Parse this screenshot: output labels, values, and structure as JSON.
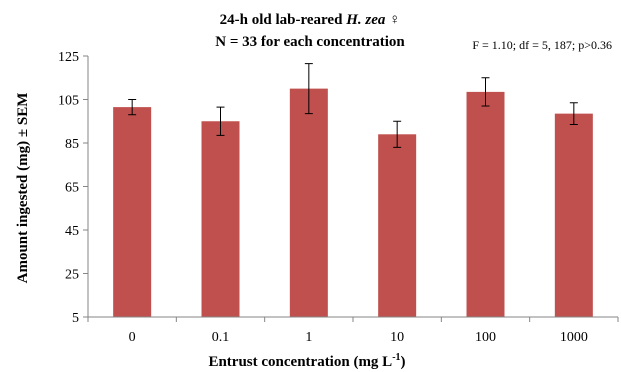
{
  "chart_data": {
    "type": "bar",
    "title_line1_prefix": "24-h old lab-reared ",
    "title_line1_italic": "H. zea",
    "title_line1_suffix": " ♀",
    "title_line2": "N = 33 for each concentration",
    "stats_annotation": "F = 1.10; df = 5, 187; p>0.36",
    "xlabel_prefix": "Entrust concentration  (mg L",
    "xlabel_sup": "-1",
    "xlabel_suffix": ")",
    "ylabel": "Amount ingested (mg) ± SEM",
    "categories": [
      "0",
      "0.1",
      "1",
      "10",
      "100",
      "1000"
    ],
    "values": [
      101.5,
      95,
      110,
      89,
      108.5,
      98.5
    ],
    "errors": [
      3.5,
      6.5,
      11.5,
      6,
      6.5,
      5
    ],
    "ylim": [
      5,
      125
    ],
    "yticks": [
      5,
      25,
      45,
      65,
      85,
      105,
      125
    ],
    "grid": false,
    "legend": "none",
    "colors": {
      "bar": "#c0504d",
      "axis": "#868686"
    }
  }
}
